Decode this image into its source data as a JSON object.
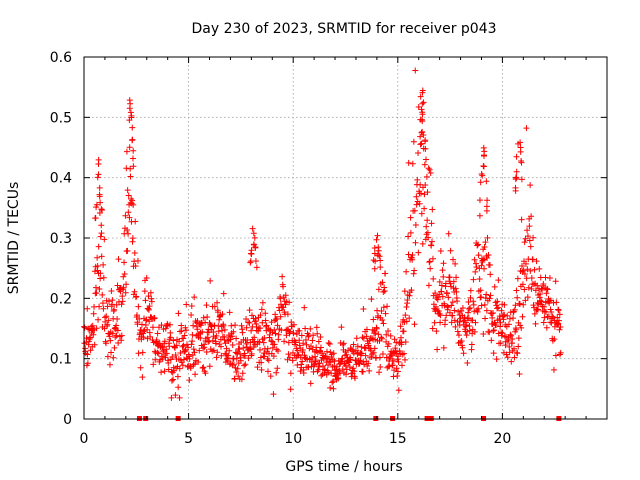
{
  "chart_data": {
    "type": "scatter",
    "title": "Day 230 of 2023, SRMTID for receiver p043",
    "xlabel": "GPS time / hours",
    "ylabel": "SRMTID / TECUs",
    "xlim": [
      0,
      25
    ],
    "ylim": [
      0,
      0.6
    ],
    "xticks": [
      0,
      5,
      10,
      15,
      20
    ],
    "yticks": [
      0,
      0.1,
      0.2,
      0.3,
      0.4,
      0.5,
      0.6
    ],
    "ytick_labels": [
      "0",
      "0.1",
      "0.2",
      "0.3",
      "0.4",
      "0.5",
      "0.6"
    ],
    "grid": true,
    "marker": "+",
    "color": "#ff0000",
    "series_profile": {
      "name": "SRMTID",
      "x": [
        0.0,
        0.3,
        0.6,
        0.8,
        1.0,
        1.2,
        1.5,
        1.8,
        2.0,
        2.2,
        2.4,
        2.6,
        2.8,
        3.0,
        3.3,
        3.6,
        4.0,
        4.5,
        5.0,
        5.5,
        6.0,
        6.5,
        7.0,
        7.5,
        8.0,
        8.5,
        9.0,
        9.5,
        10.0,
        10.5,
        11.0,
        11.5,
        12.0,
        12.5,
        13.0,
        13.5,
        14.0,
        14.3,
        14.6,
        15.0,
        15.3,
        15.6,
        15.9,
        16.2,
        16.5,
        16.8,
        17.0,
        17.5,
        18.0,
        18.5,
        19.0,
        19.3,
        19.6,
        20.0,
        20.4,
        20.8,
        21.0,
        21.3,
        21.6,
        22.0,
        22.3,
        22.6,
        22.8
      ],
      "center": [
        0.12,
        0.13,
        0.2,
        0.24,
        0.17,
        0.14,
        0.15,
        0.2,
        0.3,
        0.38,
        0.28,
        0.15,
        0.14,
        0.19,
        0.16,
        0.11,
        0.12,
        0.1,
        0.12,
        0.13,
        0.14,
        0.15,
        0.12,
        0.11,
        0.14,
        0.13,
        0.12,
        0.18,
        0.12,
        0.11,
        0.1,
        0.09,
        0.08,
        0.09,
        0.1,
        0.11,
        0.12,
        0.2,
        0.1,
        0.09,
        0.14,
        0.28,
        0.34,
        0.4,
        0.3,
        0.18,
        0.19,
        0.2,
        0.15,
        0.16,
        0.25,
        0.2,
        0.15,
        0.16,
        0.13,
        0.17,
        0.25,
        0.28,
        0.2,
        0.19,
        0.17,
        0.16,
        0.15
      ],
      "spread": [
        0.03,
        0.04,
        0.06,
        0.09,
        0.06,
        0.05,
        0.05,
        0.07,
        0.1,
        0.12,
        0.09,
        0.05,
        0.05,
        0.05,
        0.05,
        0.04,
        0.05,
        0.05,
        0.05,
        0.05,
        0.05,
        0.05,
        0.05,
        0.04,
        0.06,
        0.05,
        0.05,
        0.06,
        0.05,
        0.04,
        0.04,
        0.03,
        0.03,
        0.03,
        0.03,
        0.04,
        0.05,
        0.1,
        0.04,
        0.03,
        0.05,
        0.11,
        0.13,
        0.12,
        0.1,
        0.06,
        0.06,
        0.06,
        0.05,
        0.05,
        0.1,
        0.07,
        0.05,
        0.05,
        0.05,
        0.06,
        0.1,
        0.1,
        0.06,
        0.06,
        0.05,
        0.05,
        0.04
      ],
      "peaks": [
        {
          "x": 0.7,
          "y": 0.43
        },
        {
          "x": 2.2,
          "y": 0.55
        },
        {
          "x": 16.2,
          "y": 0.55
        },
        {
          "x": 19.1,
          "y": 0.46
        },
        {
          "x": 20.8,
          "y": 0.5
        },
        {
          "x": 14.0,
          "y": 0.32
        },
        {
          "x": 8.1,
          "y": 0.33
        }
      ],
      "data_gaps_x": [
        2.65,
        2.95,
        4.5,
        13.95,
        14.75,
        16.4,
        16.6,
        19.1,
        22.7
      ]
    }
  }
}
